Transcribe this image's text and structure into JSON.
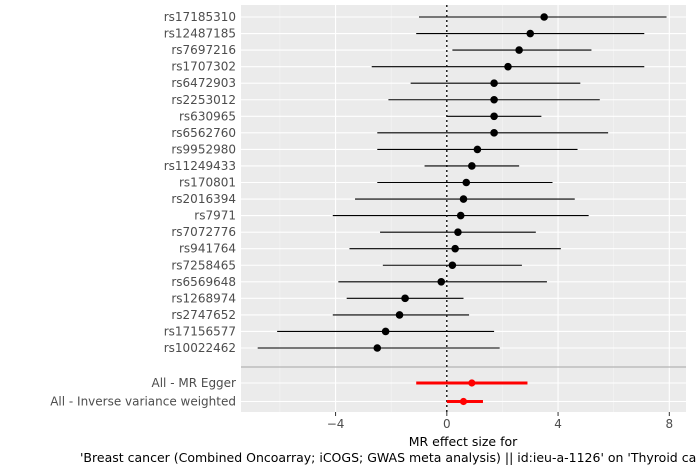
{
  "chart_data": {
    "type": "forest",
    "title": "",
    "xlabel_line1": "MR effect size for",
    "xlabel_line2": "'Breast cancer (Combined Oncoarray; iCOGS; GWAS meta analysis) || id:ieu-a-1126' on 'Thyroid cance",
    "ylabel": "",
    "xlim": [
      -7.4,
      8.6
    ],
    "xticks": [
      -4,
      0,
      4,
      8
    ],
    "xtick_labels": [
      "−4",
      "0",
      "4",
      "8"
    ],
    "reference_line": 0,
    "grid": true,
    "snps": [
      {
        "name": "rs17185310",
        "beta": 3.5,
        "lo": -1.0,
        "hi": 7.9
      },
      {
        "name": "rs12487185",
        "beta": 3.0,
        "lo": -1.1,
        "hi": 7.1
      },
      {
        "name": "rs7697216",
        "beta": 2.6,
        "lo": 0.2,
        "hi": 5.2
      },
      {
        "name": "rs1707302",
        "beta": 2.2,
        "lo": -2.7,
        "hi": 7.1
      },
      {
        "name": "rs6472903",
        "beta": 1.7,
        "lo": -1.3,
        "hi": 4.8
      },
      {
        "name": "rs2253012",
        "beta": 1.7,
        "lo": -2.1,
        "hi": 5.5
      },
      {
        "name": "rs630965",
        "beta": 1.7,
        "lo": 0.0,
        "hi": 3.4
      },
      {
        "name": "rs6562760",
        "beta": 1.7,
        "lo": -2.5,
        "hi": 5.8
      },
      {
        "name": "rs9952980",
        "beta": 1.1,
        "lo": -2.5,
        "hi": 4.7
      },
      {
        "name": "rs11249433",
        "beta": 0.9,
        "lo": -0.8,
        "hi": 2.6
      },
      {
        "name": "rs170801",
        "beta": 0.7,
        "lo": -2.5,
        "hi": 3.8
      },
      {
        "name": "rs2016394",
        "beta": 0.6,
        "lo": -3.3,
        "hi": 4.6
      },
      {
        "name": "rs7971",
        "beta": 0.5,
        "lo": -4.1,
        "hi": 5.1
      },
      {
        "name": "rs7072776",
        "beta": 0.4,
        "lo": -2.4,
        "hi": 3.2
      },
      {
        "name": "rs941764",
        "beta": 0.3,
        "lo": -3.5,
        "hi": 4.1
      },
      {
        "name": "rs7258465",
        "beta": 0.2,
        "lo": -2.3,
        "hi": 2.7
      },
      {
        "name": "rs6569648",
        "beta": -0.2,
        "lo": -3.9,
        "hi": 3.6
      },
      {
        "name": "rs1268974",
        "beta": -1.5,
        "lo": -3.6,
        "hi": 0.6
      },
      {
        "name": "rs2747652",
        "beta": -1.7,
        "lo": -4.1,
        "hi": 0.8
      },
      {
        "name": "rs17156577",
        "beta": -2.2,
        "lo": -6.1,
        "hi": 1.7
      },
      {
        "name": "rs10022462",
        "beta": -2.5,
        "lo": -6.8,
        "hi": 1.9
      }
    ],
    "summary": [
      {
        "name": "All - MR Egger",
        "beta": 0.9,
        "lo": -1.1,
        "hi": 2.9
      },
      {
        "name": "All - Inverse variance weighted",
        "beta": 0.6,
        "lo": 0.0,
        "hi": 1.3
      }
    ],
    "colors": {
      "panel": "#ebebeb",
      "grid_major": "#ffffff",
      "grid_minor": "#f5f5f5",
      "snp_line": "#000000",
      "snp_point": "#000000",
      "summary": "#ff0000",
      "separator": "#b3b3b3"
    }
  }
}
